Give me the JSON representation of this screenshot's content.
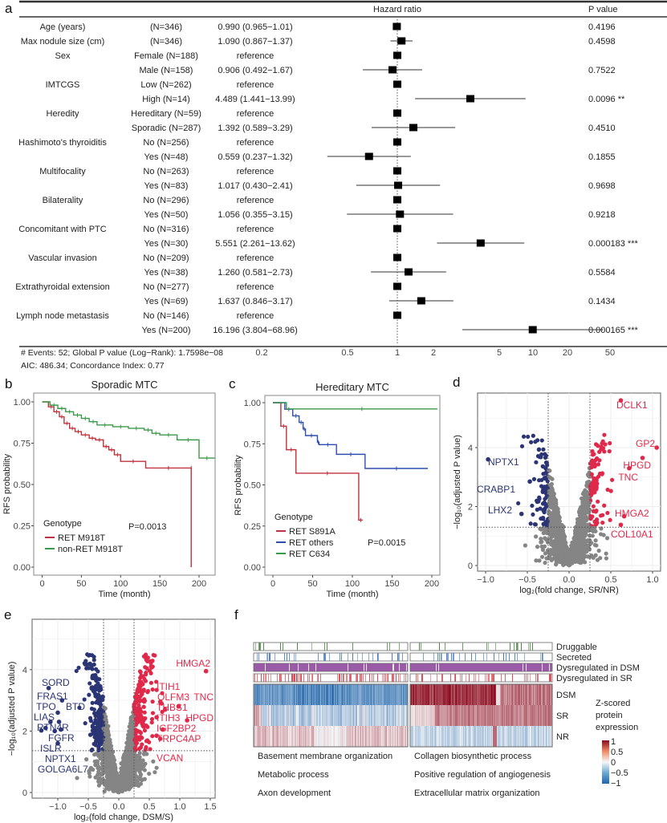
{
  "panel_labels": {
    "a": "a",
    "b": "b",
    "c": "c",
    "d": "d",
    "e": "e",
    "f": "f"
  },
  "chart_data": [
    {
      "panel": "a",
      "type": "forest",
      "header": {
        "hazard_ratio": "Hazard ratio",
        "p_value": "P value"
      },
      "xscale": "log",
      "x_ticks": [
        "0.2",
        "0.5",
        "1",
        "2",
        "5",
        "10",
        "20",
        "50"
      ],
      "reference_line": 1,
      "rows": [
        {
          "variable": "Age (years)",
          "level": "(N=346)",
          "hr_text": "0.990 (0.965−1.01)",
          "hr": 0.99,
          "lo": 0.965,
          "hi": 1.01,
          "p": "0.4196"
        },
        {
          "variable": "Max nodule size (cm)",
          "level": "(N=346)",
          "hr_text": "1.090 (0.867−1.37)",
          "hr": 1.09,
          "lo": 0.867,
          "hi": 1.37,
          "p": "0.4598"
        },
        {
          "variable": "Sex",
          "level": "Female (N=188)",
          "hr_text": "reference",
          "hr": 1,
          "p": ""
        },
        {
          "variable": "",
          "level": "Male (N=158)",
          "hr_text": "0.906 (0.492−1.67)",
          "hr": 0.906,
          "lo": 0.492,
          "hi": 1.67,
          "p": "0.7522"
        },
        {
          "variable": "IMTCGS",
          "level": "Low (N=262)",
          "hr_text": "reference",
          "hr": 1,
          "p": ""
        },
        {
          "variable": "",
          "level": "High (N=14)",
          "hr_text": "4.489 (1.441−13.99)",
          "hr": 4.489,
          "lo": 1.441,
          "hi": 13.99,
          "p": "0.0096 **"
        },
        {
          "variable": "Heredity",
          "level": "Hereditary (N=59)",
          "hr_text": "reference",
          "hr": 1,
          "p": ""
        },
        {
          "variable": "",
          "level": "Sporadic (N=287)",
          "hr_text": "1.392 (0.589−3.29)",
          "hr": 1.392,
          "lo": 0.589,
          "hi": 3.29,
          "p": "0.4510"
        },
        {
          "variable": "Hashimoto's thyroiditis",
          "level": "No (N=256)",
          "hr_text": "reference",
          "hr": 1,
          "p": ""
        },
        {
          "variable": "",
          "level": "Yes (N=48)",
          "hr_text": "0.559 (0.237−1.32)",
          "hr": 0.559,
          "lo": 0.237,
          "hi": 1.32,
          "p": "0.1855"
        },
        {
          "variable": "Multifocality",
          "level": "No (N=263)",
          "hr_text": "reference",
          "hr": 1,
          "p": ""
        },
        {
          "variable": "",
          "level": "Yes (N=83)",
          "hr_text": "1.017 (0.430−2.41)",
          "hr": 1.017,
          "lo": 0.43,
          "hi": 2.41,
          "p": "0.9698"
        },
        {
          "variable": "Bilaterality",
          "level": "No (N=296)",
          "hr_text": "reference",
          "hr": 1,
          "p": ""
        },
        {
          "variable": "",
          "level": "Yes (N=50)",
          "hr_text": "1.056 (0.355−3.15)",
          "hr": 1.056,
          "lo": 0.355,
          "hi": 3.15,
          "p": "0.9218"
        },
        {
          "variable": "Concomitant with PTC",
          "level": "No (N=316)",
          "hr_text": "reference",
          "hr": 1,
          "p": ""
        },
        {
          "variable": "",
          "level": "Yes (N=30)",
          "hr_text": "5.551 (2.261−13.62)",
          "hr": 5.551,
          "lo": 2.261,
          "hi": 13.62,
          "p": "0.000183 ***"
        },
        {
          "variable": "Vascular invasion",
          "level": "No (N=209)",
          "hr_text": "reference",
          "hr": 1,
          "p": ""
        },
        {
          "variable": "",
          "level": "Yes (N=38)",
          "hr_text": "1.260 (0.581−2.73)",
          "hr": 1.26,
          "lo": 0.581,
          "hi": 2.73,
          "p": "0.5584"
        },
        {
          "variable": "Extrathyroidal extension",
          "level": "No (N=277)",
          "hr_text": "reference",
          "hr": 1,
          "p": ""
        },
        {
          "variable": "",
          "level": "Yes (N=69)",
          "hr_text": "1.637 (0.846−3.17)",
          "hr": 1.637,
          "lo": 0.846,
          "hi": 3.17,
          "p": "0.1434"
        },
        {
          "variable": "Lymph node metastasis",
          "level": "No (N=146)",
          "hr_text": "reference",
          "hr": 1,
          "p": ""
        },
        {
          "variable": "",
          "level": "Yes (N=200)",
          "hr_text": "16.196 (3.804−68.96)",
          "hr": 16.196,
          "lo": 3.804,
          "hi": 68.96,
          "p": "0.000165 ***"
        }
      ],
      "footer": [
        "# Events: 52; Global P value (Log−Rank): 1.7598e−08",
        "AIC: 486.34; Concordance Index: 0.77"
      ]
    },
    {
      "panel": "b",
      "type": "line",
      "subtype": "kaplan-meier",
      "title": "Sporadic MTC",
      "xlabel": "Time (month)",
      "ylabel": "RFS probability",
      "xlim": [
        0,
        220
      ],
      "ylim": [
        0,
        1
      ],
      "x_ticks": [
        "0",
        "50",
        "100",
        "150",
        "200"
      ],
      "y_ticks": [
        "0.00",
        "0.25",
        "0.50",
        "0.75",
        "1.00"
      ],
      "legend_title": "Genotype",
      "annotation": "P=0.0013",
      "series": [
        {
          "name": "RET M918T",
          "color": "#c0323c",
          "x": [
            0,
            8,
            15,
            22,
            28,
            35,
            42,
            50,
            60,
            68,
            78,
            85,
            92,
            100,
            132,
            190,
            190
          ],
          "y": [
            1.0,
            0.97,
            0.94,
            0.91,
            0.87,
            0.84,
            0.82,
            0.8,
            0.78,
            0.77,
            0.73,
            0.71,
            0.68,
            0.64,
            0.6,
            0.6,
            0.0
          ]
        },
        {
          "name": "non-RET M918T",
          "color": "#3a9a4a",
          "x": [
            0,
            10,
            20,
            30,
            40,
            50,
            60,
            70,
            90,
            110,
            130,
            140,
            150,
            172,
            200,
            220
          ],
          "y": [
            1.0,
            0.98,
            0.96,
            0.94,
            0.92,
            0.9,
            0.88,
            0.86,
            0.85,
            0.84,
            0.83,
            0.81,
            0.8,
            0.77,
            0.66,
            0.66
          ]
        }
      ]
    },
    {
      "panel": "c",
      "type": "line",
      "subtype": "kaplan-meier",
      "title": "Hereditary MTC",
      "xlabel": "Time (month)",
      "ylabel": "RFS probability",
      "xlim": [
        0,
        207
      ],
      "ylim": [
        0,
        1
      ],
      "x_ticks": [
        "0",
        "50",
        "100",
        "150",
        "200"
      ],
      "y_ticks": [
        "0.00",
        "0.25",
        "0.50",
        "0.75",
        "1.00"
      ],
      "legend_title": "Genotype",
      "annotation": "P=0.0015",
      "series": [
        {
          "name": "RET S891A",
          "color": "#c0323c",
          "x": [
            0,
            10,
            17,
            29,
            108,
            113
          ],
          "y": [
            1.0,
            0.857,
            0.714,
            0.571,
            0.286,
            0.286
          ]
        },
        {
          "name": "RET others",
          "color": "#2f4fb0",
          "x": [
            0,
            15,
            25,
            33,
            38,
            41,
            56,
            58,
            80,
            116,
            195
          ],
          "y": [
            1.0,
            0.96,
            0.92,
            0.88,
            0.84,
            0.8,
            0.76,
            0.745,
            0.686,
            0.6,
            0.6
          ]
        },
        {
          "name": "RET C634",
          "color": "#3a9a4a",
          "x": [
            0,
            17,
            207
          ],
          "y": [
            1.0,
            0.962,
            0.962
          ]
        }
      ]
    },
    {
      "panel": "d",
      "type": "scatter",
      "subtype": "volcano",
      "xlabel": "log₂(fold change, SR/NR)",
      "ylabel": "−log₁₀(adjusted P value)",
      "xlim": [
        -1.1,
        1.1
      ],
      "ylim": [
        -0.2,
        5.9
      ],
      "x_ticks": [
        "−1.0",
        "−0.5",
        "0.0",
        "0.5",
        "1.0"
      ],
      "y_ticks": [
        "0",
        "2",
        "4"
      ],
      "fc_threshold": 0.25,
      "p_threshold": 1.3,
      "colors": {
        "up": "#e0294a",
        "down": "#2b3575",
        "ns": "#858585"
      },
      "labeled_genes": [
        {
          "gene": "DCLK1",
          "x": 0.62,
          "y": 5.6,
          "dir": "up"
        },
        {
          "gene": "GP2",
          "x": 1.05,
          "y": 4.0,
          "dir": "up"
        },
        {
          "gene": "HPGD",
          "x": 0.88,
          "y": 3.65,
          "dir": "up"
        },
        {
          "gene": "TNC",
          "x": 0.72,
          "y": 3.3,
          "dir": "up"
        },
        {
          "gene": "HMGA2",
          "x": 0.66,
          "y": 1.67,
          "dir": "up"
        },
        {
          "gene": "COL10A1",
          "x": 0.62,
          "y": 1.38,
          "dir": "up"
        },
        {
          "gene": "NPTX1",
          "x": -0.97,
          "y": 3.6,
          "dir": "down"
        },
        {
          "gene": "CRABP1",
          "x": -0.47,
          "y": 2.85,
          "dir": "down"
        },
        {
          "gene": "LHX2",
          "x": -0.57,
          "y": 1.75,
          "dir": "down"
        }
      ]
    },
    {
      "panel": "e",
      "type": "scatter",
      "subtype": "volcano",
      "xlabel": "log₂(fold change, DSM/S)",
      "ylabel": "−log₁₀(adjusted P value)",
      "xlim": [
        -1.35,
        1.55
      ],
      "ylim": [
        -0.2,
        5.6
      ],
      "x_ticks": [
        "−1.0",
        "−0.5",
        "0.0",
        "0.5",
        "1.0",
        "1.5"
      ],
      "y_ticks": [
        "0",
        "2",
        "4"
      ],
      "fc_threshold": 0.25,
      "p_threshold": 1.36,
      "colors": {
        "up": "#e0294a",
        "down": "#2b3575",
        "ns": "#858585"
      },
      "labeled_genes": [
        {
          "gene": "HMGA2",
          "x": 1.43,
          "y": 3.95,
          "dir": "up"
        },
        {
          "gene": "ITIH1",
          "x": 0.68,
          "y": 2.95,
          "dir": "up"
        },
        {
          "gene": "OLFM3",
          "x": 0.7,
          "y": 2.9,
          "dir": "up"
        },
        {
          "gene": "TNC",
          "x": 0.98,
          "y": 2.8,
          "dir": "up"
        },
        {
          "gene": "THBS1",
          "x": 0.76,
          "y": 2.7,
          "dir": "up"
        },
        {
          "gene": "ITIH3",
          "x": 0.62,
          "y": 2.45,
          "dir": "up"
        },
        {
          "gene": "HPGD",
          "x": 1.12,
          "y": 2.35,
          "dir": "up"
        },
        {
          "gene": "IGF2BP2",
          "x": 0.72,
          "y": 2.05,
          "dir": "up"
        },
        {
          "gene": "TRPC4AP",
          "x": 0.62,
          "y": 1.85,
          "dir": "up"
        },
        {
          "gene": "VCAN",
          "x": 0.68,
          "y": 1.75,
          "dir": "up"
        },
        {
          "gene": "SORD",
          "x": -1.15,
          "y": 3.4,
          "dir": "down"
        },
        {
          "gene": "FRAS1",
          "x": -0.93,
          "y": 3.0,
          "dir": "down"
        },
        {
          "gene": "TPO",
          "x": -1.0,
          "y": 2.6,
          "dir": "down"
        },
        {
          "gene": "BTD",
          "x": -0.98,
          "y": 2.3,
          "dir": "down"
        },
        {
          "gene": "LIAS",
          "x": -1.12,
          "y": 2.3,
          "dir": "down"
        },
        {
          "gene": "RTN4R",
          "x": -1.05,
          "y": 2.0,
          "dir": "down"
        },
        {
          "gene": "FGFR",
          "x": -0.95,
          "y": 2.05,
          "dir": "down"
        },
        {
          "gene": "ISLR",
          "x": -1.0,
          "y": 1.6,
          "dir": "down"
        },
        {
          "gene": "NPTX1",
          "x": -1.2,
          "y": 2.1,
          "dir": "down"
        },
        {
          "gene": "GOLGA6L7",
          "x": -1.27,
          "y": 2.02,
          "dir": "down"
        }
      ]
    },
    {
      "panel": "f",
      "type": "heatmap",
      "rows": [
        "DSM",
        "SR",
        "NR"
      ],
      "annotation_tracks": [
        {
          "name": "Druggable",
          "color": "#4f8a45"
        },
        {
          "name": "Secreted",
          "color": "#3f78c4"
        },
        {
          "name": "Dysregulated in DSM",
          "color": "#9a5aa8"
        },
        {
          "name": "Dysregulated in SR",
          "color": "#d8454f"
        }
      ],
      "clusters": [
        {
          "pattern": "down in DSM",
          "terms": [
            "Basement membrane organization",
            "Metabolic process",
            "Axon development"
          ]
        },
        {
          "pattern": "up in DSM",
          "terms": [
            "Collagen biosynthetic process",
            "Positive regulation of angiogenesis",
            "Extracellular matrix organization"
          ]
        }
      ],
      "legend_title": [
        "Z-scored",
        "protein",
        "expression"
      ],
      "color_range": [
        -1,
        1
      ],
      "legend_ticks": [
        "1",
        "0.5",
        "0",
        "−0.5",
        "−1"
      ],
      "colorscale": [
        "#2166ac",
        "#f7f7f7",
        "#b2182b"
      ]
    }
  ]
}
